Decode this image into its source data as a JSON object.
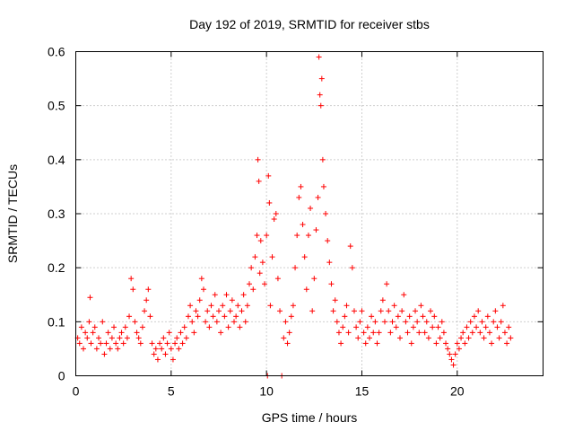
{
  "chart_data": {
    "type": "scatter",
    "title": "Day 192 of 2019, SRMTID for receiver stbs",
    "xlabel": "GPS time / hours",
    "ylabel": "SRMTID / TECUs",
    "xlim": [
      0,
      24.5
    ],
    "ylim": [
      0,
      0.6
    ],
    "xticks": [
      0,
      5,
      10,
      15,
      20
    ],
    "xtick_labels": [
      "0",
      "5",
      "10",
      "15",
      "20"
    ],
    "yticks": [
      0,
      0.1,
      0.2,
      0.3,
      0.4,
      0.5,
      0.6
    ],
    "ytick_labels": [
      "0",
      "0.1",
      "0.2",
      "0.3",
      "0.4",
      "0.5",
      "0.6"
    ],
    "grid": true,
    "marker": "+",
    "color": "#ff0000",
    "series": [
      {
        "name": "SRMTID",
        "points": [
          [
            0.1,
            0.07
          ],
          [
            0.2,
            0.06
          ],
          [
            0.3,
            0.09
          ],
          [
            0.4,
            0.05
          ],
          [
            0.5,
            0.08
          ],
          [
            0.6,
            0.07
          ],
          [
            0.7,
            0.1
          ],
          [
            0.75,
            0.145
          ],
          [
            0.8,
            0.06
          ],
          [
            0.9,
            0.08
          ],
          [
            1.0,
            0.09
          ],
          [
            1.1,
            0.05
          ],
          [
            1.2,
            0.07
          ],
          [
            1.3,
            0.06
          ],
          [
            1.4,
            0.1
          ],
          [
            1.5,
            0.04
          ],
          [
            1.6,
            0.06
          ],
          [
            1.7,
            0.08
          ],
          [
            1.8,
            0.05
          ],
          [
            1.9,
            0.07
          ],
          [
            2.0,
            0.09
          ],
          [
            2.1,
            0.06
          ],
          [
            2.2,
            0.05
          ],
          [
            2.3,
            0.07
          ],
          [
            2.4,
            0.08
          ],
          [
            2.5,
            0.06
          ],
          [
            2.6,
            0.09
          ],
          [
            2.7,
            0.07
          ],
          [
            2.8,
            0.11
          ],
          [
            2.9,
            0.18
          ],
          [
            3.0,
            0.16
          ],
          [
            3.1,
            0.1
          ],
          [
            3.2,
            0.08
          ],
          [
            3.3,
            0.07
          ],
          [
            3.4,
            0.06
          ],
          [
            3.5,
            0.09
          ],
          [
            3.6,
            0.12
          ],
          [
            3.7,
            0.14
          ],
          [
            3.8,
            0.16
          ],
          [
            3.9,
            0.11
          ],
          [
            4.0,
            0.06
          ],
          [
            4.1,
            0.04
          ],
          [
            4.2,
            0.05
          ],
          [
            4.3,
            0.03
          ],
          [
            4.4,
            0.06
          ],
          [
            4.5,
            0.05
          ],
          [
            4.6,
            0.07
          ],
          [
            4.7,
            0.04
          ],
          [
            4.8,
            0.06
          ],
          [
            4.9,
            0.08
          ],
          [
            5.0,
            0.05
          ],
          [
            5.1,
            0.03
          ],
          [
            5.2,
            0.06
          ],
          [
            5.3,
            0.07
          ],
          [
            5.4,
            0.05
          ],
          [
            5.5,
            0.08
          ],
          [
            5.6,
            0.06
          ],
          [
            5.7,
            0.09
          ],
          [
            5.8,
            0.07
          ],
          [
            5.9,
            0.11
          ],
          [
            6.0,
            0.13
          ],
          [
            6.1,
            0.1
          ],
          [
            6.2,
            0.08
          ],
          [
            6.3,
            0.12
          ],
          [
            6.4,
            0.11
          ],
          [
            6.5,
            0.14
          ],
          [
            6.6,
            0.18
          ],
          [
            6.7,
            0.16
          ],
          [
            6.8,
            0.1
          ],
          [
            6.9,
            0.12
          ],
          [
            7.0,
            0.09
          ],
          [
            7.1,
            0.13
          ],
          [
            7.2,
            0.11
          ],
          [
            7.3,
            0.15
          ],
          [
            7.4,
            0.1
          ],
          [
            7.5,
            0.12
          ],
          [
            7.6,
            0.08
          ],
          [
            7.7,
            0.13
          ],
          [
            7.8,
            0.11
          ],
          [
            7.9,
            0.15
          ],
          [
            8.0,
            0.09
          ],
          [
            8.1,
            0.12
          ],
          [
            8.2,
            0.14
          ],
          [
            8.3,
            0.1
          ],
          [
            8.4,
            0.11
          ],
          [
            8.5,
            0.13
          ],
          [
            8.6,
            0.09
          ],
          [
            8.7,
            0.12
          ],
          [
            8.8,
            0.15
          ],
          [
            8.9,
            0.1
          ],
          [
            9.0,
            0.13
          ],
          [
            9.1,
            0.17
          ],
          [
            9.2,
            0.2
          ],
          [
            9.3,
            0.16
          ],
          [
            9.4,
            0.22
          ],
          [
            9.5,
            0.26
          ],
          [
            9.55,
            0.4
          ],
          [
            9.6,
            0.36
          ],
          [
            9.65,
            0.19
          ],
          [
            9.7,
            0.25
          ],
          [
            9.8,
            0.21
          ],
          [
            9.9,
            0.17
          ],
          [
            10.0,
            0.26
          ],
          [
            10.05,
            0.0
          ],
          [
            10.1,
            0.37
          ],
          [
            10.15,
            0.32
          ],
          [
            10.2,
            0.13
          ],
          [
            10.3,
            0.22
          ],
          [
            10.4,
            0.29
          ],
          [
            10.5,
            0.3
          ],
          [
            10.6,
            0.18
          ],
          [
            10.7,
            0.12
          ],
          [
            10.8,
            0.0
          ],
          [
            10.9,
            0.07
          ],
          [
            11.0,
            0.1
          ],
          [
            11.1,
            0.06
          ],
          [
            11.2,
            0.08
          ],
          [
            11.3,
            0.11
          ],
          [
            11.4,
            0.13
          ],
          [
            11.5,
            0.2
          ],
          [
            11.6,
            0.26
          ],
          [
            11.7,
            0.33
          ],
          [
            11.8,
            0.35
          ],
          [
            11.9,
            0.28
          ],
          [
            12.0,
            0.22
          ],
          [
            12.1,
            0.16
          ],
          [
            12.2,
            0.26
          ],
          [
            12.3,
            0.31
          ],
          [
            12.4,
            0.12
          ],
          [
            12.5,
            0.18
          ],
          [
            12.6,
            0.27
          ],
          [
            12.7,
            0.33
          ],
          [
            12.75,
            0.59
          ],
          [
            12.8,
            0.52
          ],
          [
            12.85,
            0.5
          ],
          [
            12.9,
            0.55
          ],
          [
            12.95,
            0.4
          ],
          [
            13.0,
            0.35
          ],
          [
            13.1,
            0.3
          ],
          [
            13.2,
            0.25
          ],
          [
            13.3,
            0.21
          ],
          [
            13.4,
            0.17
          ],
          [
            13.5,
            0.12
          ],
          [
            13.6,
            0.14
          ],
          [
            13.7,
            0.1
          ],
          [
            13.8,
            0.08
          ],
          [
            13.9,
            0.06
          ],
          [
            14.0,
            0.09
          ],
          [
            14.1,
            0.11
          ],
          [
            14.2,
            0.13
          ],
          [
            14.3,
            0.08
          ],
          [
            14.4,
            0.24
          ],
          [
            14.5,
            0.2
          ],
          [
            14.6,
            0.12
          ],
          [
            14.7,
            0.09
          ],
          [
            14.8,
            0.07
          ],
          [
            14.9,
            0.1
          ],
          [
            15.0,
            0.12
          ],
          [
            15.1,
            0.08
          ],
          [
            15.2,
            0.06
          ],
          [
            15.3,
            0.09
          ],
          [
            15.4,
            0.07
          ],
          [
            15.5,
            0.11
          ],
          [
            15.6,
            0.08
          ],
          [
            15.7,
            0.1
          ],
          [
            15.8,
            0.06
          ],
          [
            15.9,
            0.08
          ],
          [
            16.0,
            0.12
          ],
          [
            16.1,
            0.14
          ],
          [
            16.2,
            0.1
          ],
          [
            16.3,
            0.17
          ],
          [
            16.4,
            0.12
          ],
          [
            16.5,
            0.08
          ],
          [
            16.6,
            0.1
          ],
          [
            16.7,
            0.13
          ],
          [
            16.8,
            0.09
          ],
          [
            16.9,
            0.11
          ],
          [
            17.0,
            0.07
          ],
          [
            17.1,
            0.12
          ],
          [
            17.2,
            0.15
          ],
          [
            17.3,
            0.1
          ],
          [
            17.4,
            0.08
          ],
          [
            17.5,
            0.11
          ],
          [
            17.6,
            0.06
          ],
          [
            17.7,
            0.09
          ],
          [
            17.8,
            0.12
          ],
          [
            17.9,
            0.1
          ],
          [
            18.0,
            0.08
          ],
          [
            18.1,
            0.13
          ],
          [
            18.2,
            0.11
          ],
          [
            18.3,
            0.08
          ],
          [
            18.4,
            0.1
          ],
          [
            18.5,
            0.07
          ],
          [
            18.6,
            0.12
          ],
          [
            18.7,
            0.09
          ],
          [
            18.8,
            0.11
          ],
          [
            18.9,
            0.06
          ],
          [
            19.0,
            0.09
          ],
          [
            19.1,
            0.07
          ],
          [
            19.2,
            0.1
          ],
          [
            19.3,
            0.08
          ],
          [
            19.4,
            0.06
          ],
          [
            19.5,
            0.05
          ],
          [
            19.6,
            0.04
          ],
          [
            19.7,
            0.03
          ],
          [
            19.8,
            0.02
          ],
          [
            19.9,
            0.04
          ],
          [
            20.0,
            0.06
          ],
          [
            20.1,
            0.05
          ],
          [
            20.2,
            0.07
          ],
          [
            20.3,
            0.08
          ],
          [
            20.4,
            0.06
          ],
          [
            20.5,
            0.09
          ],
          [
            20.6,
            0.07
          ],
          [
            20.7,
            0.1
          ],
          [
            20.8,
            0.08
          ],
          [
            20.9,
            0.11
          ],
          [
            21.0,
            0.09
          ],
          [
            21.1,
            0.12
          ],
          [
            21.2,
            0.08
          ],
          [
            21.3,
            0.1
          ],
          [
            21.4,
            0.07
          ],
          [
            21.5,
            0.09
          ],
          [
            21.6,
            0.11
          ],
          [
            21.7,
            0.08
          ],
          [
            21.8,
            0.06
          ],
          [
            21.9,
            0.1
          ],
          [
            22.0,
            0.12
          ],
          [
            22.1,
            0.09
          ],
          [
            22.2,
            0.07
          ],
          [
            22.3,
            0.1
          ],
          [
            22.4,
            0.13
          ],
          [
            22.5,
            0.08
          ],
          [
            22.6,
            0.06
          ],
          [
            22.7,
            0.09
          ],
          [
            22.8,
            0.07
          ]
        ]
      }
    ]
  }
}
